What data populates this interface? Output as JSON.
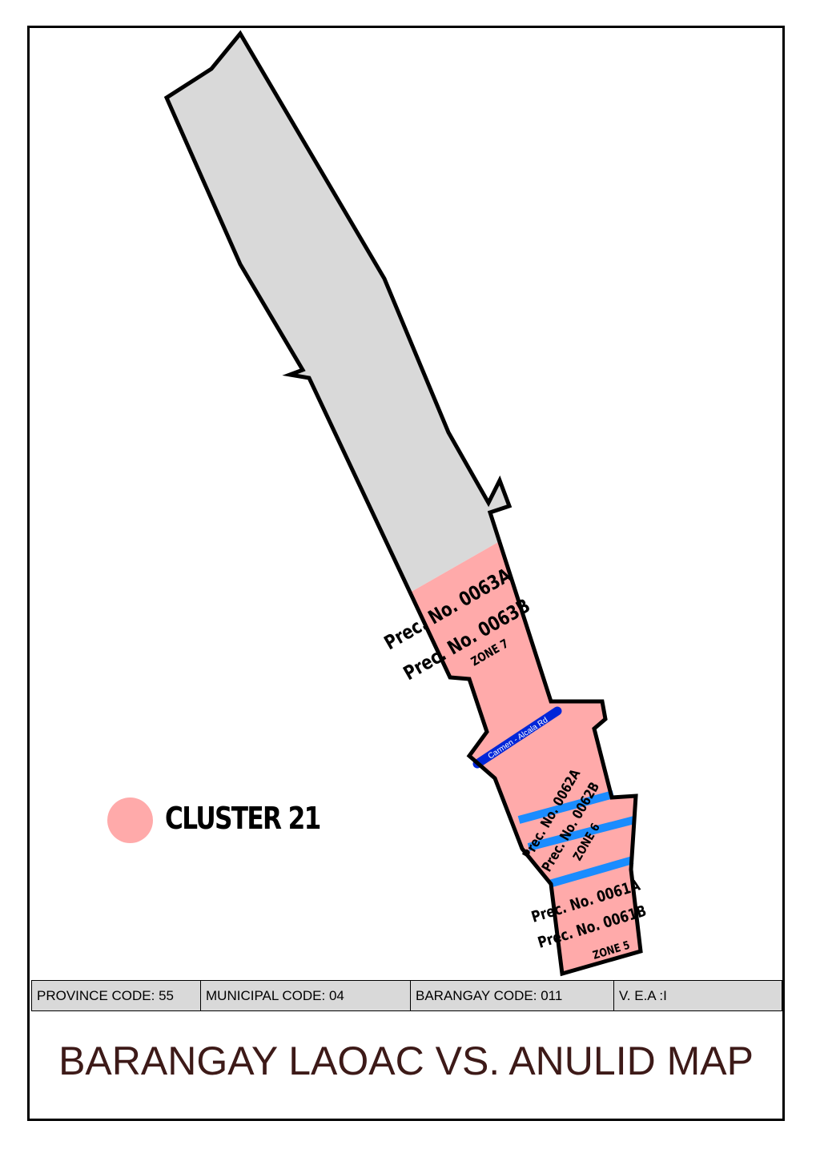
{
  "map": {
    "title": "BARANGAY LAOAC VS. ANULID MAP",
    "legend": {
      "label": "CLUSTER 21",
      "color": "#ffaaaa"
    },
    "codes": {
      "province": "PROVINCE CODE: 55",
      "municipal": "MUNICIPAL CODE: 04",
      "barangay": "BARANGAY CODE: 011",
      "vea": "V. E.A :I"
    },
    "road_label": "Carmen - Alcala Rd",
    "precincts": {
      "p63a": "Prec. No. 0063A",
      "p63b": "Prec. No. 0063B",
      "zone7": "ZONE 7",
      "p62a": "Prec. No. 0062A",
      "p62b": "Prec. No. 0062B",
      "zone6": "ZONE 6",
      "p61a": "Prec. No. 0061A",
      "p61b": "Prec. No. 0061B",
      "zone5": "ZONE 5"
    },
    "colors": {
      "cluster_fill": "#ffaaaa",
      "other_fill": "#d9d9d9",
      "road_main": "#0026d9",
      "road_secondary": "#1a8cff",
      "title": "#3d1a18"
    }
  }
}
